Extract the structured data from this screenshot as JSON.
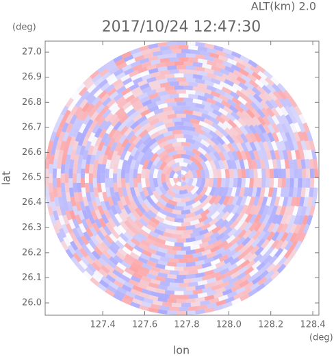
{
  "chart_data": {
    "type": "field",
    "title": "2017/10/24 12:47:30",
    "annotation": "ALT(km) 2.0",
    "x_label": "lon",
    "y_label": "lat",
    "x_unit": "(deg)",
    "y_unit": "(deg)",
    "xlim": [
      127.126,
      128.429
    ],
    "ylim": [
      25.951,
      27.044
    ],
    "xticks": [
      127.4,
      127.6,
      127.8,
      {
        "value": 128.0,
        "label": "128.0"
      },
      128.2,
      128.4
    ],
    "yticks": [
      {
        "value": 26.0,
        "label": "26.0"
      },
      26.1,
      26.2,
      26.3,
      26.4,
      26.5,
      26.6,
      26.7,
      26.8,
      26.9,
      {
        "value": 27.0,
        "label": "27.0"
      }
    ],
    "colors": [
      "#ff8f8f",
      "#9a9aff"
    ]
  }
}
